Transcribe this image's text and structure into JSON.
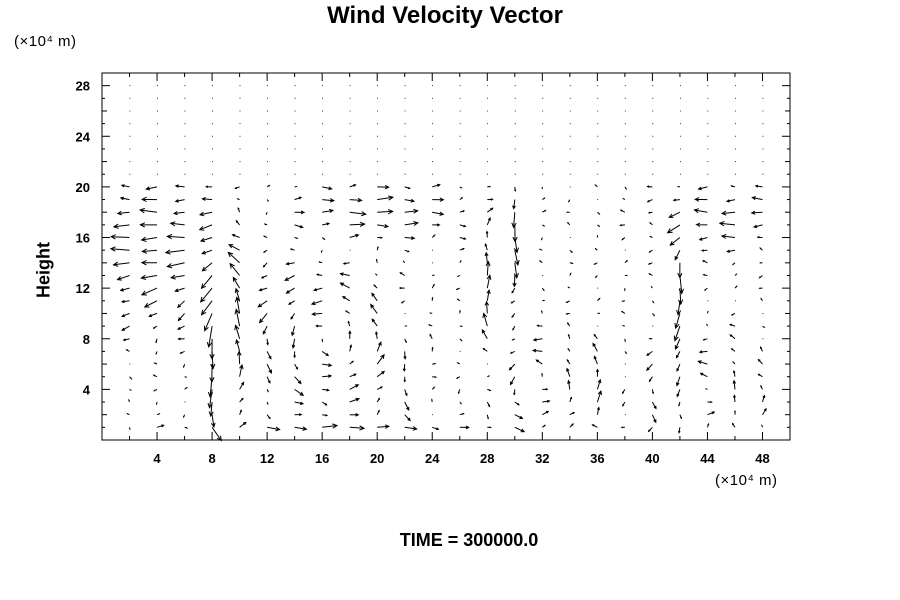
{
  "chart_data": {
    "type": "vector-field",
    "title": "Wind Velocity Vector",
    "xlabel": "",
    "ylabel": "Height",
    "x_unit_label": "(×10⁴ m)",
    "y_unit_label": "(×10⁴ m)",
    "footer": "TIME = 300000.0",
    "xlim": [
      0,
      50
    ],
    "ylim": [
      0,
      29
    ],
    "x_ticks": [
      4,
      8,
      12,
      16,
      20,
      24,
      28,
      32,
      36,
      40,
      44,
      48
    ],
    "y_ticks": [
      4,
      8,
      12,
      16,
      20,
      24,
      28
    ],
    "x_tick_labels": [
      "4",
      "8",
      "12",
      "16",
      "20",
      "24",
      "28",
      "32",
      "36",
      "40",
      "44",
      "48"
    ],
    "y_tick_labels": [
      "4",
      "8",
      "12",
      "16",
      "20",
      "24",
      "28"
    ],
    "grid_x_step": 2,
    "grid_y_step": 1,
    "grid": false,
    "legend": "none",
    "vector_color": "#000000",
    "description_regimes": [
      {
        "x_range": [
          0,
          9
        ],
        "y_range": [
          10,
          20
        ],
        "flow": "westward"
      },
      {
        "x_range": [
          9,
          22
        ],
        "y_range": [
          5,
          13
        ],
        "flow": "circulation"
      },
      {
        "x_range": [
          11,
          27
        ],
        "y_range": [
          15,
          20
        ],
        "flow": "eastward"
      },
      {
        "x_range": [
          26,
          36
        ],
        "y_range": [
          1,
          7
        ],
        "flow": "circulation"
      },
      {
        "x_range": [
          38,
          50
        ],
        "y_range": [
          1,
          6
        ],
        "flow": "circulation"
      },
      {
        "x_range": [
          39,
          50
        ],
        "y_range": [
          14,
          20
        ],
        "flow": "westward"
      },
      {
        "x_range": [
          0,
          50
        ],
        "y_range": [
          21,
          29
        ],
        "flow": "calm"
      }
    ]
  }
}
